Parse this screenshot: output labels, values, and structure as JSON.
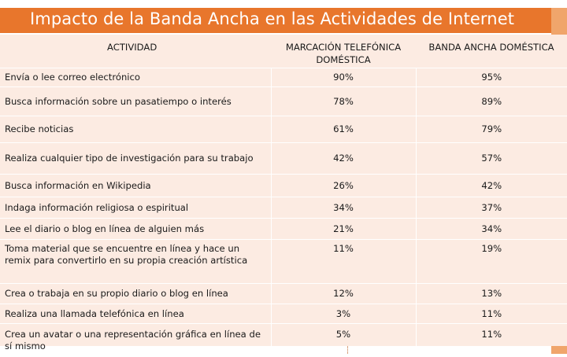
{
  "title": "Impacto de la Banda Ancha en las Actividades de Internet",
  "table": {
    "headers": [
      "ACTIVIDAD",
      "MARCACIÓN TELEFÓNICA DOMÉSTICA",
      "BANDA ANCHA DOMÉSTICA"
    ],
    "rows": [
      {
        "activity": "Envía o lee correo electrónico",
        "dialup": "90%",
        "broadband": "95%"
      },
      {
        "activity": "Busca información sobre un pasatiempo o interés",
        "dialup": "78%",
        "broadband": "89%"
      },
      {
        "activity": "Recibe noticias",
        "dialup": "61%",
        "broadband": "79%"
      },
      {
        "activity": "Realiza cualquier tipo de investigación para su trabajo",
        "dialup": "42%",
        "broadband": "57%"
      },
      {
        "activity": "Busca información en Wikipedia",
        "dialup": "26%",
        "broadband": "42%"
      },
      {
        "activity": "Indaga información religiosa o espiritual",
        "dialup": "34%",
        "broadband": "37%"
      },
      {
        "activity": "Lee el diario o blog en línea de alguien más",
        "dialup": "21%",
        "broadband": "34%"
      },
      {
        "activity": "Toma material que se encuentre en línea y hace un remix para convertirlo en su propia creación artística",
        "dialup": "11%",
        "broadband": "19%"
      },
      {
        "activity": "Crea o trabaja en su propio diario o blog en línea",
        "dialup": "12%",
        "broadband": "13%"
      },
      {
        "activity": "Realiza una llamada telefónica en línea",
        "dialup": "3%",
        "broadband": "11%"
      },
      {
        "activity": "Crea un avatar o una representación gráfica en línea de sí mismo",
        "dialup": "5%",
        "broadband": "11%"
      }
    ]
  },
  "colors": {
    "title_bg": "#e8762c",
    "accent": "#f0a56b",
    "table_bg": "#fcebe2"
  }
}
